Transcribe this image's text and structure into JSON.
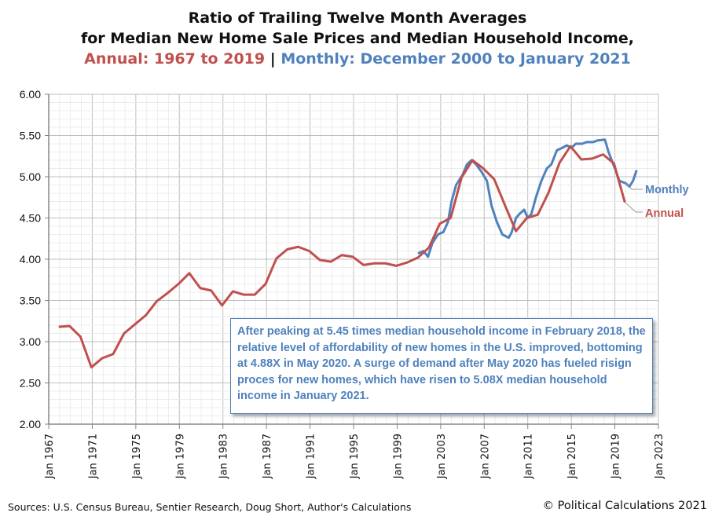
{
  "chart_data": {
    "type": "line",
    "title_line1": "Ratio of Trailing Twelve Month Averages",
    "title_line2": "for Median New Home Sale Prices and Median Household Income,",
    "title_annual": "Annual: 1967 to 2019",
    "title_separator": "|",
    "title_monthly": "Monthly: December 2000 to January 2021",
    "ylim": [
      2.0,
      6.0
    ],
    "yticks": [
      "2.00",
      "2.50",
      "3.00",
      "3.50",
      "4.00",
      "4.50",
      "5.00",
      "5.50",
      "6.00"
    ],
    "xlim": [
      "Jan 1967",
      "Jan 2023"
    ],
    "xticks": [
      "Jan 1967",
      "Jan 1971",
      "Jan 1975",
      "Jan 1979",
      "Jan 1983",
      "Jan 1987",
      "Jan 1991",
      "Jan 1995",
      "Jan 1999",
      "Jan 2003",
      "Jan 2007",
      "Jan 2011",
      "Jan 2015",
      "Jan 2019",
      "Jan 2023"
    ],
    "grid": true,
    "colors": {
      "annual": "#c0504d",
      "monthly": "#4f81bd"
    },
    "series": [
      {
        "name": "Annual",
        "years": [
          1967,
          1968,
          1969,
          1970,
          1971,
          1972,
          1973,
          1974,
          1975,
          1976,
          1977,
          1978,
          1979,
          1980,
          1981,
          1982,
          1983,
          1984,
          1985,
          1986,
          1987,
          1988,
          1989,
          1990,
          1991,
          1992,
          1993,
          1994,
          1995,
          1996,
          1997,
          1998,
          1999,
          2000,
          2001,
          2002,
          2003,
          2004,
          2005,
          2006,
          2007,
          2008,
          2009,
          2010,
          2011,
          2012,
          2013,
          2014,
          2015,
          2016,
          2017,
          2018,
          2019
        ],
        "values": [
          3.18,
          3.19,
          3.06,
          2.69,
          2.8,
          2.85,
          3.1,
          3.21,
          3.32,
          3.49,
          3.59,
          3.7,
          3.83,
          3.65,
          3.62,
          3.44,
          3.61,
          3.57,
          3.57,
          3.7,
          4.01,
          4.12,
          4.15,
          4.1,
          3.99,
          3.97,
          4.05,
          4.03,
          3.93,
          3.95,
          3.95,
          3.92,
          3.96,
          4.02,
          4.14,
          4.43,
          4.5,
          4.99,
          5.2,
          5.1,
          4.97,
          4.65,
          4.34,
          4.5,
          4.54,
          4.81,
          5.17,
          5.37,
          5.21,
          5.22,
          5.27,
          5.16,
          4.69
        ]
      },
      {
        "name": "Monthly",
        "dates": [
          "2000-12",
          "2001-06",
          "2001-11",
          "2002-04",
          "2002-10",
          "2003-04",
          "2003-09",
          "2004-01",
          "2004-06",
          "2005-01",
          "2005-06",
          "2005-11",
          "2006-04",
          "2006-10",
          "2007-04",
          "2007-09",
          "2008-03",
          "2008-09",
          "2009-04",
          "2009-07",
          "2009-12",
          "2010-04",
          "2010-09",
          "2011-01",
          "2011-05",
          "2011-10",
          "2012-04",
          "2012-10",
          "2013-03",
          "2013-09",
          "2014-03",
          "2014-08",
          "2015-01",
          "2015-06",
          "2016-01",
          "2016-06",
          "2017-01",
          "2017-06",
          "2018-02",
          "2018-06",
          "2019-01",
          "2019-06",
          "2020-01",
          "2020-05",
          "2020-09",
          "2021-01"
        ],
        "values": [
          4.07,
          4.1,
          4.03,
          4.2,
          4.3,
          4.33,
          4.45,
          4.7,
          4.9,
          5.02,
          5.15,
          5.2,
          5.15,
          5.06,
          4.95,
          4.65,
          4.45,
          4.3,
          4.26,
          4.32,
          4.5,
          4.55,
          4.6,
          4.5,
          4.55,
          4.75,
          4.95,
          5.1,
          5.15,
          5.32,
          5.35,
          5.38,
          5.35,
          5.4,
          5.4,
          5.42,
          5.42,
          5.44,
          5.45,
          5.3,
          5.1,
          4.95,
          4.92,
          4.88,
          4.95,
          5.08
        ]
      }
    ],
    "annotation": "After peaking at 5.45 times median household income in February 2018, the relative level of affordability of new homes in the U.S. improved, bottoming at 4.88X in May 2020. A surge of demand after May 2020 has fueled risign proces for new homes, which have risen to 5.08X median household income in January 2021."
  },
  "footer": {
    "sources": "Sources: U.S. Census Bureau, Sentier Research, Doug Short,  Author's Calculations",
    "copyright": "© Political Calculations 2021"
  }
}
